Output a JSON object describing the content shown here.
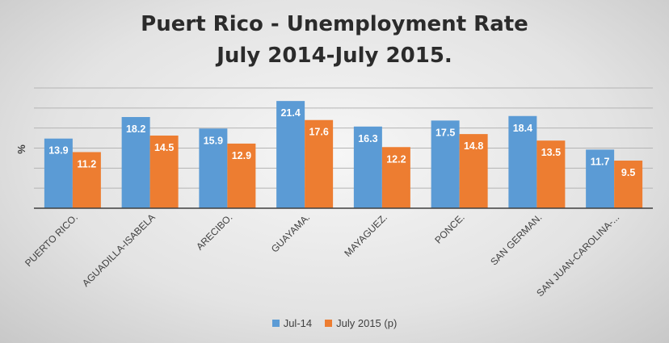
{
  "chart_data": {
    "type": "bar",
    "title": [
      "Puert Rico - Unemployment Rate",
      "July 2014-July 2015."
    ],
    "ylabel": "%",
    "ylim": [
      0,
      24
    ],
    "yticks": [
      0,
      4,
      8,
      12,
      16,
      20,
      24
    ],
    "grid": true,
    "legend_position": "bottom",
    "categories": [
      "PUERTO RICO.",
      "AGUADILLA-ISABELA",
      "ARECIBO.",
      "GUAYAMA.",
      "MAYAGUEZ.",
      "PONCE.",
      "SAN GERMAN.",
      "SAN JUAN-CAROLINA-..."
    ],
    "series": [
      {
        "name": "Jul-14",
        "color": "#5b9bd5",
        "values": [
          13.9,
          18.2,
          15.9,
          21.4,
          16.3,
          17.5,
          18.4,
          11.7
        ]
      },
      {
        "name": "July 2015 (p)",
        "color": "#ed7d31",
        "values": [
          11.2,
          14.5,
          12.9,
          17.6,
          12.2,
          14.8,
          13.5,
          9.5
        ]
      }
    ]
  }
}
